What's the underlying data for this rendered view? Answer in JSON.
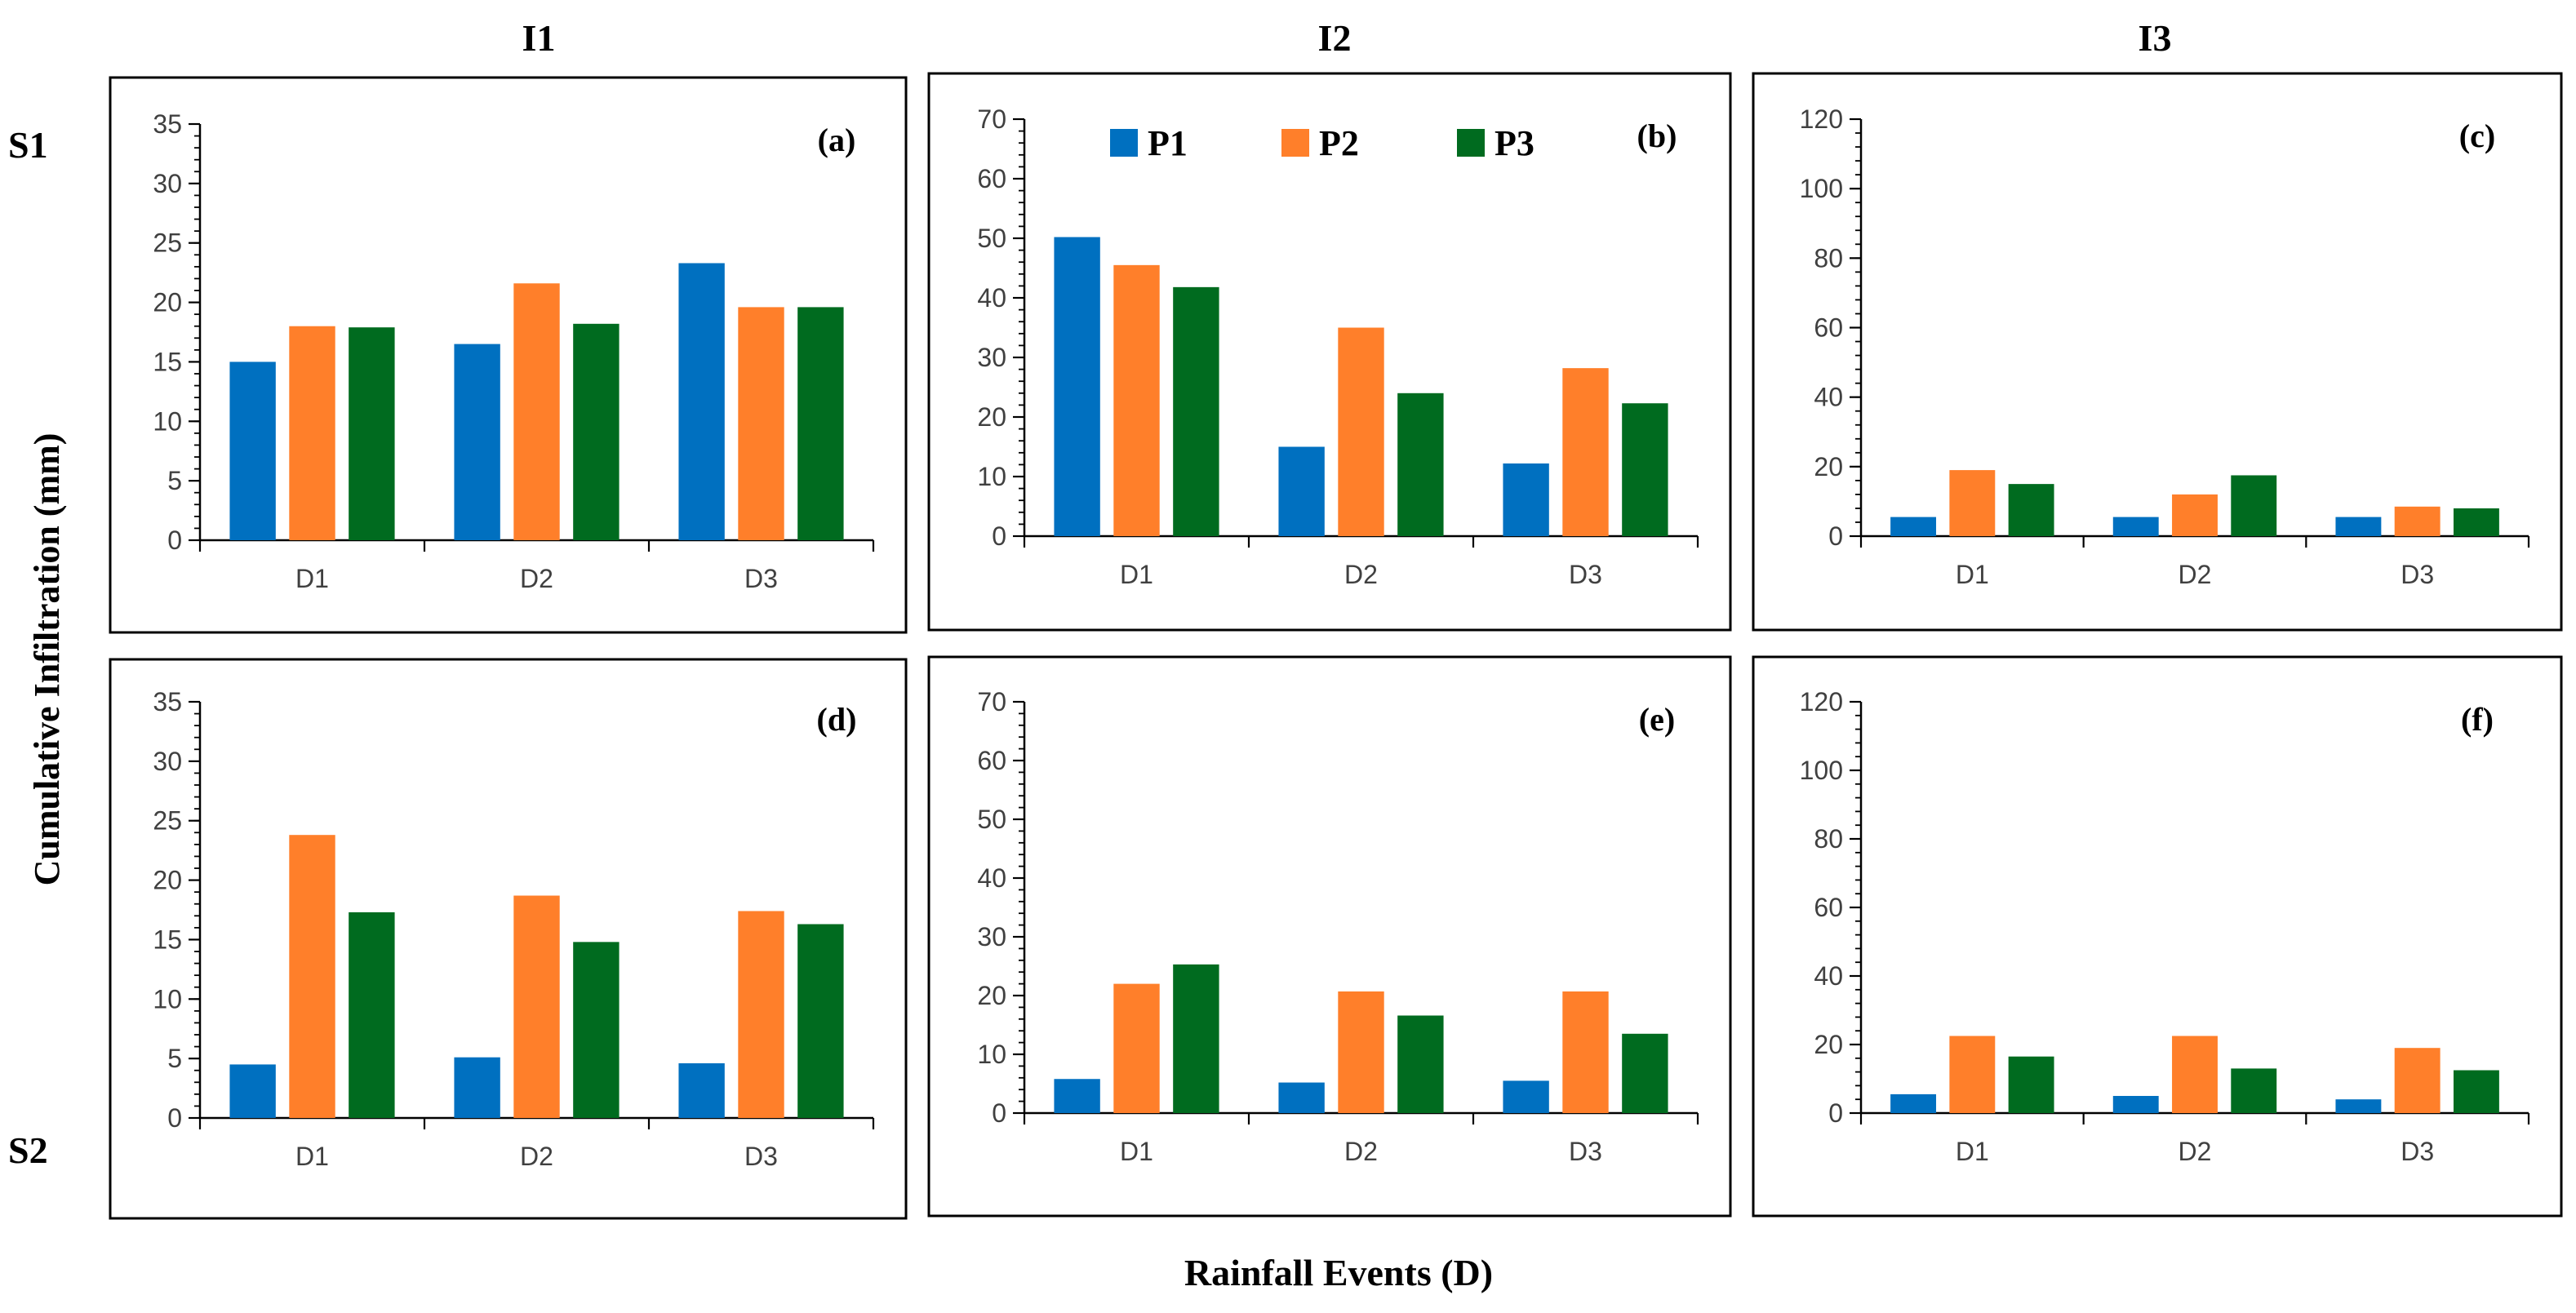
{
  "figure": {
    "column_headers": [
      "I1",
      "I2",
      "I3"
    ],
    "row_headers": [
      "S1",
      "S2"
    ],
    "y_axis_label": "Cumulative Infiltration  (mm)",
    "x_axis_label": "Rainfall Events (D)",
    "legend": [
      {
        "name": "P1",
        "color": "#0070C0"
      },
      {
        "name": "P2",
        "color": "#FF7F2A"
      },
      {
        "name": "P3",
        "color": "#006B1F"
      }
    ]
  },
  "chart_data": [
    {
      "type": "bar",
      "panel": "(a)",
      "categories": [
        "D1",
        "D2",
        "D3"
      ],
      "ylim": [
        0,
        35
      ],
      "yticks": [
        0,
        5,
        10,
        15,
        20,
        25,
        30,
        35
      ],
      "series": [
        {
          "name": "P1",
          "values": [
            15.0,
            16.5,
            23.3
          ]
        },
        {
          "name": "P2",
          "values": [
            18.0,
            21.6,
            19.6
          ]
        },
        {
          "name": "P3",
          "values": [
            17.9,
            18.2,
            19.6
          ]
        }
      ]
    },
    {
      "type": "bar",
      "panel": "(b)",
      "categories": [
        "D1",
        "D2",
        "D3"
      ],
      "ylim": [
        0,
        70
      ],
      "yticks": [
        0,
        10,
        20,
        30,
        40,
        50,
        60,
        70
      ],
      "series": [
        {
          "name": "P1",
          "values": [
            50.2,
            15.0,
            12.2
          ]
        },
        {
          "name": "P2",
          "values": [
            45.5,
            35.0,
            28.2
          ]
        },
        {
          "name": "P3",
          "values": [
            41.8,
            24.0,
            22.3
          ]
        }
      ]
    },
    {
      "type": "bar",
      "panel": "(c)",
      "categories": [
        "D1",
        "D2",
        "D3"
      ],
      "ylim": [
        0,
        120
      ],
      "yticks": [
        0,
        20,
        40,
        60,
        80,
        100,
        120
      ],
      "series": [
        {
          "name": "P1",
          "values": [
            5.5,
            5.5,
            5.5
          ]
        },
        {
          "name": "P2",
          "values": [
            19.0,
            12.0,
            8.5
          ]
        },
        {
          "name": "P3",
          "values": [
            15.0,
            17.5,
            8.0
          ]
        }
      ]
    },
    {
      "type": "bar",
      "panel": "(d)",
      "categories": [
        "D1",
        "D2",
        "D3"
      ],
      "ylim": [
        0,
        35
      ],
      "yticks": [
        0,
        5,
        10,
        15,
        20,
        25,
        30,
        35
      ],
      "series": [
        {
          "name": "P1",
          "values": [
            4.5,
            5.1,
            4.6
          ]
        },
        {
          "name": "P2",
          "values": [
            23.8,
            18.7,
            17.4
          ]
        },
        {
          "name": "P3",
          "values": [
            17.3,
            14.8,
            16.3
          ]
        }
      ]
    },
    {
      "type": "bar",
      "panel": "(e)",
      "categories": [
        "D1",
        "D2",
        "D3"
      ],
      "ylim": [
        0,
        70
      ],
      "yticks": [
        0,
        10,
        20,
        30,
        40,
        50,
        60,
        70
      ],
      "series": [
        {
          "name": "P1",
          "values": [
            5.8,
            5.2,
            5.5
          ]
        },
        {
          "name": "P2",
          "values": [
            22.0,
            20.7,
            20.7
          ]
        },
        {
          "name": "P3",
          "values": [
            25.3,
            16.6,
            13.5
          ]
        }
      ]
    },
    {
      "type": "bar",
      "panel": "(f)",
      "categories": [
        "D1",
        "D2",
        "D3"
      ],
      "ylim": [
        0,
        120
      ],
      "yticks": [
        0,
        20,
        40,
        60,
        80,
        100,
        120
      ],
      "series": [
        {
          "name": "P1",
          "values": [
            5.5,
            5.0,
            4.0
          ]
        },
        {
          "name": "P2",
          "values": [
            22.5,
            22.5,
            19.0
          ]
        },
        {
          "name": "P3",
          "values": [
            16.5,
            13.0,
            12.5
          ]
        }
      ]
    }
  ]
}
